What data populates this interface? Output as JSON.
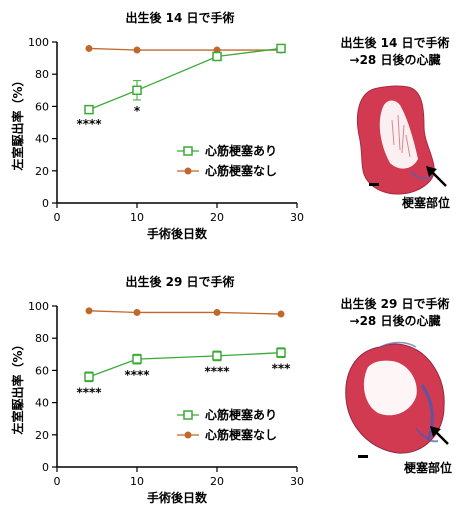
{
  "colors": {
    "with_mi": "#3aaa35",
    "without_mi": "#c0682c",
    "axis": "#000000"
  },
  "panels": [
    {
      "title": "出生後 14 日で手術",
      "heart_title_line1": "出生後 14 日で手術",
      "heart_title_line2": "→28 日後の心臓",
      "infarct_label": "梗塞部位"
    },
    {
      "title": "出生後 29 日で手術",
      "heart_title_line1": "出生後 29 日で手術",
      "heart_title_line2": "→28 日後の心臓",
      "infarct_label": "梗塞部位"
    }
  ],
  "chart_data": [
    {
      "type": "line",
      "title": "出生後 14 日で手術",
      "xlabel": "手術後日数",
      "ylabel": "左室駆出率（%）",
      "xlim": [
        0,
        30
      ],
      "ylim": [
        0,
        100
      ],
      "xticks": [
        0,
        10,
        20,
        30
      ],
      "yticks": [
        0,
        20,
        40,
        60,
        80,
        100
      ],
      "legend_position": "lower-right",
      "series": [
        {
          "name": "心筋梗塞あり",
          "marker": "square-open",
          "color": "#3aaa35",
          "x": [
            4,
            10,
            20,
            28
          ],
          "y": [
            58,
            70,
            91,
            96
          ],
          "error": [
            2,
            6,
            2,
            1
          ],
          "significance": [
            "****",
            "*",
            "",
            ""
          ]
        },
        {
          "name": "心筋梗塞なし",
          "marker": "circle-filled",
          "color": "#c0682c",
          "x": [
            4,
            10,
            20,
            28
          ],
          "y": [
            96,
            95,
            95,
            95
          ],
          "error": [
            0,
            0,
            0,
            0
          ]
        }
      ]
    },
    {
      "type": "line",
      "title": "出生後 29 日で手術",
      "xlabel": "手術後日数",
      "ylabel": "左室駆出率（%）",
      "xlim": [
        0,
        30
      ],
      "ylim": [
        0,
        100
      ],
      "xticks": [
        0,
        10,
        20,
        30
      ],
      "yticks": [
        0,
        20,
        40,
        60,
        80,
        100
      ],
      "legend_position": "lower-right",
      "series": [
        {
          "name": "心筋梗塞あり",
          "marker": "square-open",
          "color": "#3aaa35",
          "x": [
            4,
            10,
            20,
            28
          ],
          "y": [
            56,
            67,
            69,
            71
          ],
          "error": [
            3,
            3,
            3,
            3
          ],
          "significance": [
            "****",
            "****",
            "****",
            "***"
          ]
        },
        {
          "name": "心筋梗塞なし",
          "marker": "circle-filled",
          "color": "#c0682c",
          "x": [
            4,
            10,
            20,
            28
          ],
          "y": [
            97,
            96,
            96,
            95
          ],
          "error": [
            0,
            0,
            0,
            0
          ]
        }
      ]
    }
  ]
}
